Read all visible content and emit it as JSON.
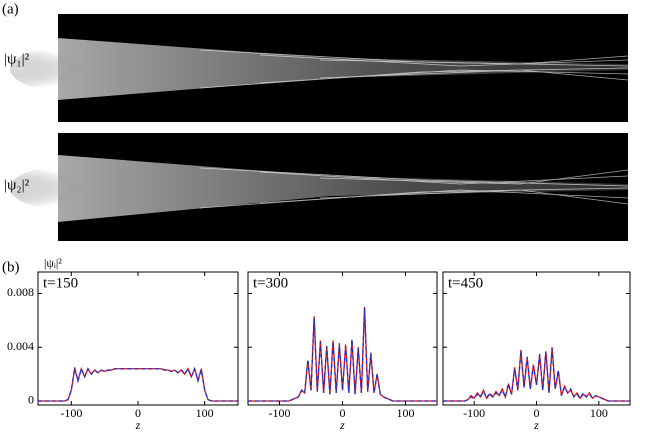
{
  "panel_a": {
    "label": "(a)",
    "image_labels": [
      "|ψ₁|²",
      "|ψ₂|²"
    ]
  },
  "panel_b": {
    "label": "(b)"
  },
  "chart_data": [
    {
      "type": "line",
      "title": "t=150",
      "xlabel": "z",
      "ylabel": "|ψᵢ|²",
      "x": [
        -150,
        -145,
        -140,
        -135,
        -130,
        -125,
        -120,
        -115,
        -110,
        -105,
        -100,
        -95,
        -90,
        -85,
        -80,
        -75,
        -70,
        -65,
        -60,
        -55,
        -50,
        -45,
        -40,
        -35,
        -30,
        -25,
        -20,
        -15,
        -10,
        -5,
        0,
        5,
        10,
        15,
        20,
        25,
        30,
        35,
        40,
        45,
        50,
        55,
        60,
        65,
        70,
        75,
        80,
        85,
        90,
        95,
        100,
        105,
        110,
        115,
        120,
        125,
        130,
        135,
        140,
        145,
        150
      ],
      "series": [
        {
          "color": "#e01010",
          "linestyle": "solid",
          "values": [
            0,
            0,
            0,
            0,
            0,
            0,
            0,
            0,
            0,
            0.0001,
            0.0008,
            0.0024,
            0.0015,
            0.0024,
            0.0018,
            0.0024,
            0.002,
            0.0023,
            0.0021,
            0.0023,
            0.0022,
            0.0023,
            0.0023,
            0.0024,
            0.0024,
            0.0024,
            0.0024,
            0.0024,
            0.0024,
            0.0024,
            0.0024,
            0.0024,
            0.0024,
            0.0024,
            0.0024,
            0.0024,
            0.0024,
            0.0024,
            0.0023,
            0.0023,
            0.0022,
            0.0023,
            0.0021,
            0.0023,
            0.002,
            0.0024,
            0.0018,
            0.0024,
            0.0015,
            0.0024,
            0.0008,
            0.0001,
            0,
            0,
            0,
            0,
            0,
            0,
            0,
            0,
            0
          ]
        },
        {
          "color": "#2030d0",
          "linestyle": "dashed",
          "values": [
            0,
            0,
            0,
            0,
            0,
            0,
            0,
            0,
            0,
            0.0001,
            0.0008,
            0.0025,
            0.0015,
            0.0024,
            0.0018,
            0.0024,
            0.002,
            0.0023,
            0.0021,
            0.0023,
            0.0022,
            0.0023,
            0.0023,
            0.0024,
            0.0024,
            0.0024,
            0.0024,
            0.0024,
            0.0024,
            0.0024,
            0.0024,
            0.0024,
            0.0024,
            0.0024,
            0.0024,
            0.0024,
            0.0024,
            0.0024,
            0.0023,
            0.0023,
            0.0022,
            0.0023,
            0.0021,
            0.0023,
            0.002,
            0.0024,
            0.0018,
            0.0024,
            0.0015,
            0.0023,
            0.0008,
            0.0001,
            0,
            0,
            0,
            0,
            0,
            0,
            0,
            0,
            0
          ]
        }
      ],
      "xlim": [
        -150,
        150
      ],
      "xticks": [
        -100,
        0,
        100
      ],
      "ylim": [
        -0.0003,
        0.0096
      ],
      "yticks": [
        0,
        0.004,
        0.008
      ]
    },
    {
      "type": "line",
      "title": "t=300",
      "xlabel": "z",
      "x": [
        -150,
        -145,
        -140,
        -135,
        -130,
        -125,
        -120,
        -115,
        -110,
        -105,
        -100,
        -95,
        -90,
        -85,
        -80,
        -75,
        -70,
        -65,
        -60,
        -55,
        -50,
        -45,
        -40,
        -35,
        -30,
        -25,
        -20,
        -15,
        -10,
        -5,
        0,
        5,
        10,
        15,
        20,
        25,
        30,
        35,
        40,
        45,
        50,
        55,
        60,
        65,
        70,
        75,
        80,
        85,
        90,
        95,
        100,
        105,
        110,
        115,
        120,
        125,
        130,
        135,
        140,
        145,
        150
      ],
      "series": [
        {
          "color": "#e01010",
          "linestyle": "solid",
          "values": [
            0,
            0,
            0,
            0,
            0,
            0,
            0,
            0,
            0,
            0,
            0,
            0,
            0,
            0,
            0.0001,
            0.0002,
            0.0003,
            0.0008,
            0.0006,
            0.003,
            0.0008,
            0.0063,
            0.0007,
            0.0045,
            0.0006,
            0.004,
            0.0005,
            0.0045,
            0.0006,
            0.0042,
            0.0008,
            0.0042,
            0.0006,
            0.0045,
            0.0005,
            0.004,
            0.0006,
            0.007,
            0.0007,
            0.0035,
            0.0006,
            0.002,
            0.0005,
            0.0003,
            0.0002,
            0.0001,
            0,
            0,
            0,
            0,
            0,
            0,
            0,
            0,
            0,
            0,
            0,
            0,
            0,
            0,
            0
          ]
        },
        {
          "color": "#2030d0",
          "linestyle": "dashed",
          "values": [
            0,
            0,
            0,
            0,
            0,
            0,
            0,
            0,
            0,
            0,
            0,
            0,
            0,
            0,
            0.0001,
            0.0002,
            0.0003,
            0.0008,
            0.0006,
            0.0031,
            0.0008,
            0.0062,
            0.0007,
            0.0044,
            0.0006,
            0.0041,
            0.0005,
            0.0044,
            0.0006,
            0.0043,
            0.0008,
            0.0041,
            0.0006,
            0.0046,
            0.0005,
            0.0039,
            0.0006,
            0.0069,
            0.0007,
            0.0036,
            0.0006,
            0.002,
            0.0005,
            0.0003,
            0.0002,
            0.0001,
            0,
            0,
            0,
            0,
            0,
            0,
            0,
            0,
            0,
            0,
            0,
            0,
            0,
            0,
            0
          ]
        }
      ],
      "xlim": [
        -150,
        150
      ],
      "xticks": [
        -100,
        0,
        100
      ],
      "ylim": [
        -0.0003,
        0.0096
      ],
      "yticks": [
        0,
        0.004,
        0.008
      ]
    },
    {
      "type": "line",
      "title": "t=450",
      "xlabel": "z",
      "x": [
        -150,
        -145,
        -140,
        -135,
        -130,
        -125,
        -120,
        -115,
        -110,
        -105,
        -100,
        -95,
        -90,
        -85,
        -80,
        -75,
        -70,
        -65,
        -60,
        -55,
        -50,
        -45,
        -40,
        -35,
        -30,
        -25,
        -20,
        -15,
        -10,
        -5,
        0,
        5,
        10,
        15,
        20,
        25,
        30,
        35,
        40,
        45,
        50,
        55,
        60,
        65,
        70,
        75,
        80,
        85,
        90,
        95,
        100,
        105,
        110,
        115,
        120,
        125,
        130,
        135,
        140,
        145,
        150
      ],
      "series": [
        {
          "color": "#e01010",
          "linestyle": "solid",
          "values": [
            0,
            0,
            0,
            0,
            0,
            0,
            0,
            0,
            0.0001,
            0.0004,
            0.0002,
            0.0006,
            0.0003,
            0.0008,
            0.0002,
            0.0005,
            0.0003,
            0.0007,
            0.0004,
            0.0009,
            0.0003,
            0.0012,
            0.0005,
            0.0025,
            0.0008,
            0.0038,
            0.001,
            0.0032,
            0.0009,
            0.0027,
            0.0012,
            0.0034,
            0.0008,
            0.0037,
            0.0006,
            0.004,
            0.0009,
            0.0022,
            0.0004,
            0.0011,
            0.0006,
            0.0008,
            0.0003,
            0.0006,
            0.0002,
            0.0005,
            0.0003,
            0.0006,
            0.0002,
            0.0004,
            0.0003,
            0.0002,
            0.0001,
            0,
            0,
            0,
            0,
            0,
            0,
            0,
            0
          ]
        },
        {
          "color": "#2030d0",
          "linestyle": "dashed",
          "values": [
            0,
            0,
            0,
            0,
            0,
            0,
            0,
            0,
            0.0001,
            0.0003,
            0.0002,
            0.0005,
            0.0003,
            0.0007,
            0.0002,
            0.0006,
            0.0003,
            0.0006,
            0.0004,
            0.0008,
            0.0003,
            0.0013,
            0.0005,
            0.0024,
            0.0008,
            0.0037,
            0.001,
            0.0033,
            0.0009,
            0.0026,
            0.0012,
            0.0035,
            0.0008,
            0.0036,
            0.0006,
            0.0039,
            0.0009,
            0.0023,
            0.0004,
            0.001,
            0.0006,
            0.0009,
            0.0003,
            0.0005,
            0.0002,
            0.0006,
            0.0003,
            0.0005,
            0.0002,
            0.0004,
            0.0003,
            0.0002,
            0.0001,
            0,
            0,
            0,
            0,
            0,
            0,
            0,
            0
          ]
        }
      ],
      "xlim": [
        -150,
        150
      ],
      "xticks": [
        -100,
        0,
        100
      ],
      "ylim": [
        -0.0003,
        0.0096
      ],
      "yticks": [
        0,
        0.004,
        0.008
      ]
    }
  ]
}
